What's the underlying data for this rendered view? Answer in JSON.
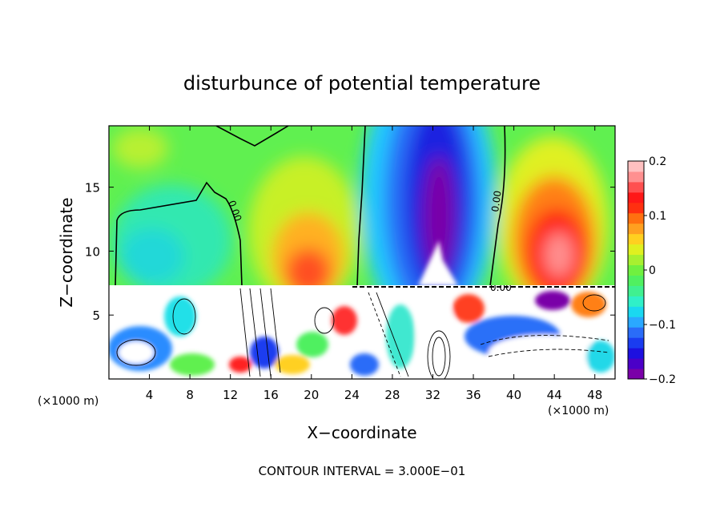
{
  "chart_data": {
    "type": "heatmap",
    "title": "disturbunce of potential temperature",
    "xlabel": "X−coordinate",
    "ylabel": "Z−coordinate",
    "x_unit_label": "(×1000 m)",
    "xlim": [
      0,
      50
    ],
    "ylim": [
      0,
      19.8
    ],
    "x_ticks": [
      4,
      8,
      12,
      16,
      20,
      24,
      28,
      32,
      36,
      40,
      44,
      48
    ],
    "y_ticks": [
      5,
      10,
      15
    ],
    "colorbar": {
      "range": [
        -0.2,
        0.2
      ],
      "ticks": [
        {
          "value": 0.2,
          "label": "0.2"
        },
        {
          "value": 0.1,
          "label": "0.1"
        },
        {
          "value": 0,
          "label": "0"
        },
        {
          "value": -0.1,
          "label": "−0.1"
        },
        {
          "value": -0.2,
          "label": "−0.2"
        }
      ],
      "colors": [
        "#7a00a8",
        "#4b00c8",
        "#1d10e0",
        "#1a3cf0",
        "#2a6cf8",
        "#2aa8ff",
        "#1ad8f0",
        "#30f0c8",
        "#40f090",
        "#50f060",
        "#70f040",
        "#a8f030",
        "#e0f020",
        "#ffd020",
        "#ffa020",
        "#ff7010",
        "#ff3010",
        "#ff1818",
        "#ff5050",
        "#ff9090",
        "#ffc0c0"
      ]
    },
    "contour_labels": [
      "0.00",
      "0.00",
      "0.00",
      "0.00"
    ],
    "footer": "CONTOUR INTERVAL = 3.000E−01",
    "grid": false,
    "legend": "colorbar-right"
  }
}
